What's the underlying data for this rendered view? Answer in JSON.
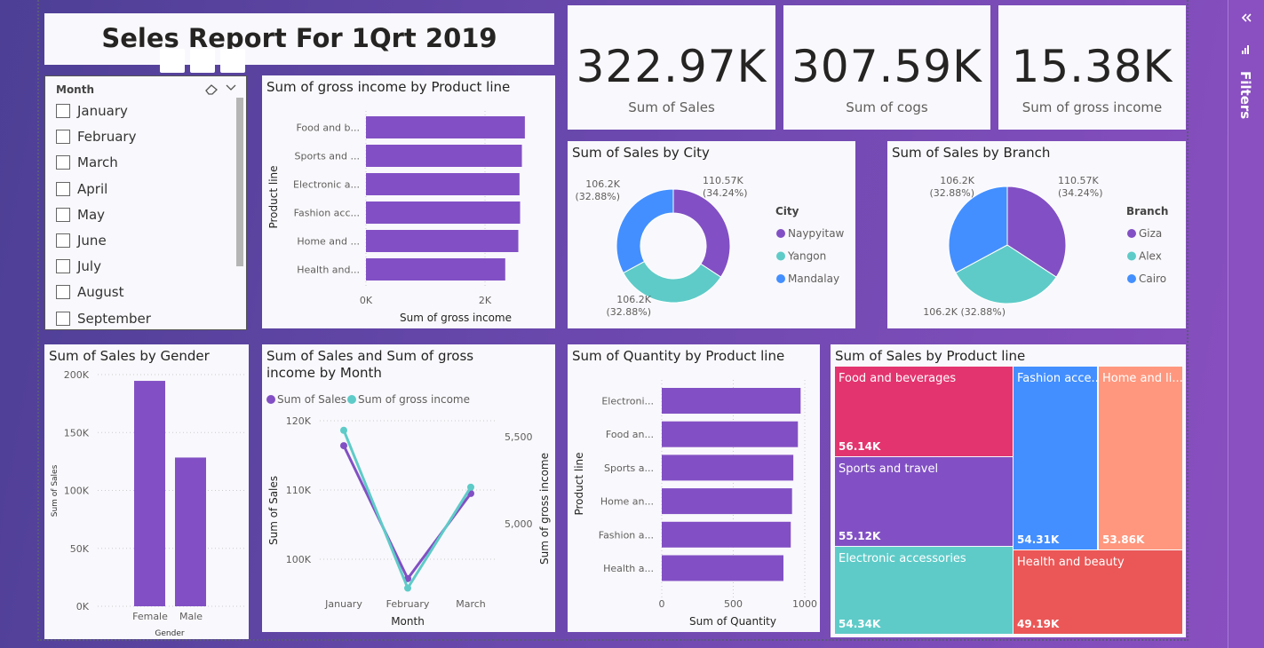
{
  "title": "Seles Report For 1Qrt 2019",
  "kpis": [
    {
      "value": "322.97K",
      "label": "Sum of Sales"
    },
    {
      "value": "307.59K",
      "label": "Sum of cogs"
    },
    {
      "value": "15.38K",
      "label": "Sum of gross income"
    }
  ],
  "slicer": {
    "header": "Month",
    "items": [
      "January",
      "February",
      "March",
      "April",
      "May",
      "June",
      "July",
      "August",
      "September"
    ]
  },
  "filters_pane": {
    "label": "Filters",
    "collapse_icon": "double-chevron-left",
    "filter_icon": "funnel"
  },
  "colors": {
    "purple": "#8250c4",
    "teal": "#5ecbc8",
    "blue": "#438fff",
    "pink": "#e3346f",
    "salmon": "#ff977e",
    "red": "#eb5757"
  },
  "chart_data": [
    {
      "id": "gross_by_product",
      "type": "bar",
      "title": "Sum of gross income by Product line",
      "xlabel": "Sum of gross income",
      "ylabel": "Product line",
      "categories": [
        "Food and b...",
        "Sports and ...",
        "Electronic a...",
        "Fashion acc...",
        "Home and ...",
        "Health and..."
      ],
      "values": [
        2670,
        2620,
        2580,
        2590,
        2560,
        2340
      ],
      "xticks": [
        "0K",
        "2K"
      ],
      "xtick_values": [
        0,
        2000
      ]
    },
    {
      "id": "sales_by_city",
      "type": "pie",
      "donut": true,
      "title": "Sum of Sales by City",
      "legend_title": "City",
      "categories": [
        "Naypyitaw",
        "Yangon",
        "Mandalay"
      ],
      "values": [
        110570,
        106200,
        106200
      ],
      "labels": [
        "110.57K",
        "106.2K",
        "106.2K"
      ],
      "percents": [
        "(34.24%)",
        "(32.88%)",
        "(32.88%)"
      ]
    },
    {
      "id": "sales_by_branch",
      "type": "pie",
      "title": "Sum of Sales by Branch",
      "legend_title": "Branch",
      "categories": [
        "Giza",
        "Alex",
        "Cairo"
      ],
      "values": [
        110570,
        106200,
        106200
      ],
      "labels": [
        "110.57K",
        "106.2K",
        "106.2K"
      ],
      "percents": [
        "(34.24%)",
        "(32.88%)",
        "(32.88%)"
      ]
    },
    {
      "id": "sales_by_gender",
      "type": "bar",
      "title": "Sum of Sales by Gender",
      "xlabel": "Gender",
      "ylabel": "Sum of Sales",
      "categories": [
        "Female",
        "Male"
      ],
      "values": [
        194600,
        128400
      ],
      "ylim": [
        0,
        200000
      ],
      "yticks": [
        "0K",
        "50K",
        "100K",
        "150K",
        "200K"
      ]
    },
    {
      "id": "sales_gross_by_month",
      "type": "line",
      "title": "Sum of Sales and Sum of gross income by Month",
      "xlabel": "Month",
      "ylabel": "Sum of Sales",
      "y2label": "Sum of gross income",
      "categories": [
        "January",
        "February",
        "March"
      ],
      "series": [
        {
          "name": "Sum of Sales",
          "values": [
            116400,
            97200,
            109500
          ],
          "axis": "left"
        },
        {
          "name": "Sum of gross income",
          "values": [
            5537,
            4630,
            5210
          ],
          "axis": "right"
        }
      ],
      "yticks": [
        "100K",
        "110K",
        "120K"
      ],
      "ytick_values": [
        100000,
        110000,
        120000
      ],
      "y2ticks": [
        "5,000",
        "5,500"
      ],
      "y2tick_values": [
        5000,
        5500
      ]
    },
    {
      "id": "quantity_by_product",
      "type": "bar",
      "title": "Sum of Quantity by Product line",
      "xlabel": "Sum of Quantity",
      "ylabel": "Product line",
      "categories": [
        "Electroni...",
        "Food an...",
        "Sports a...",
        "Home an...",
        "Fashion a...",
        "Health a..."
      ],
      "values": [
        971,
        952,
        920,
        911,
        902,
        851
      ],
      "xticks": [
        "0",
        "500",
        "1000"
      ],
      "xtick_values": [
        0,
        500,
        1000
      ]
    },
    {
      "id": "sales_by_product_treemap",
      "type": "treemap",
      "title": "Sum of Sales by Product line",
      "categories": [
        "Food and beverages",
        "Sports and travel",
        "Electronic accessories",
        "Fashion acce...",
        "Home and li...",
        "Health and beauty"
      ],
      "labels": [
        "56.14K",
        "55.12K",
        "54.34K",
        "54.31K",
        "53.86K",
        "49.19K"
      ],
      "values": [
        56140,
        55120,
        54340,
        54310,
        53860,
        49190
      ]
    }
  ]
}
